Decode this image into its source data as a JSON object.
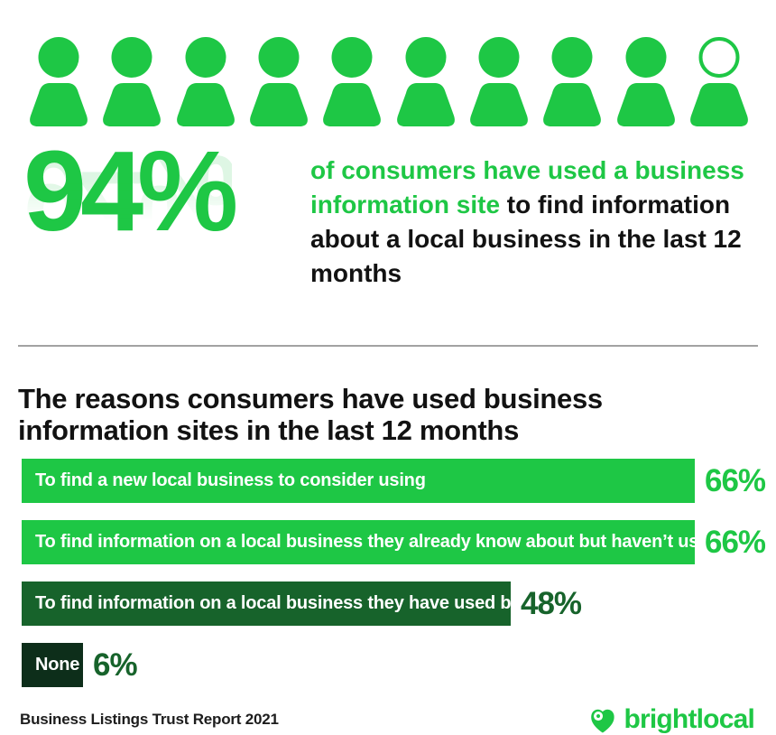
{
  "colors": {
    "bright_green": "#1EC745",
    "dark_green": "#17632B",
    "darkest_green": "#0D2E1A",
    "text_black": "#121212",
    "divider_gray": "#a2a2a2"
  },
  "icon_row": {
    "icon": "person-icon",
    "total_icons": 10,
    "filled_icons": 9,
    "partial_icons": 1
  },
  "hero": {
    "stat": "94%",
    "text_highlight": "of consumers have used a business information site",
    "text_rest": " to find information about a local business in the last 12 months"
  },
  "section": {
    "title": "The reasons consumers have used business information sites in the last 12 months"
  },
  "chart_data": {
    "type": "bar",
    "orientation": "horizontal",
    "title": "The reasons consumers have used business information sites in the last 12 months",
    "categories": [
      "To find a new local business to consider using",
      "To find information on a local business they already know about but haven’t used",
      "To find information on a local business they have used before",
      "None"
    ],
    "values": [
      66,
      66,
      48,
      6
    ],
    "xlim": [
      0,
      100
    ],
    "headline_stat": {
      "value": 94,
      "text": "of consumers have used a business information site to find information about a local business in the last 12 months"
    },
    "bars": [
      {
        "label": "To find a new local business to consider using",
        "value": 66,
        "pct_label": "66%",
        "bar_color": "#1EC745",
        "value_label_color": "#1EC745"
      },
      {
        "label": "To find information on a local business they already know about but haven’t used",
        "value": 66,
        "pct_label": "66%",
        "bar_color": "#1EC745",
        "value_label_color": "#1EC745"
      },
      {
        "label": "To find information on a local business they have used before",
        "value": 48,
        "pct_label": "48%",
        "bar_color": "#17632B",
        "value_label_color": "#17632B"
      },
      {
        "label": "None",
        "value": 6,
        "pct_label": "6%",
        "bar_color": "#0D2E1A",
        "value_label_color": "#17632B"
      }
    ]
  },
  "footer": {
    "report_title": "Business Listings Trust Report 2021",
    "brand_name": "brightlocal"
  }
}
